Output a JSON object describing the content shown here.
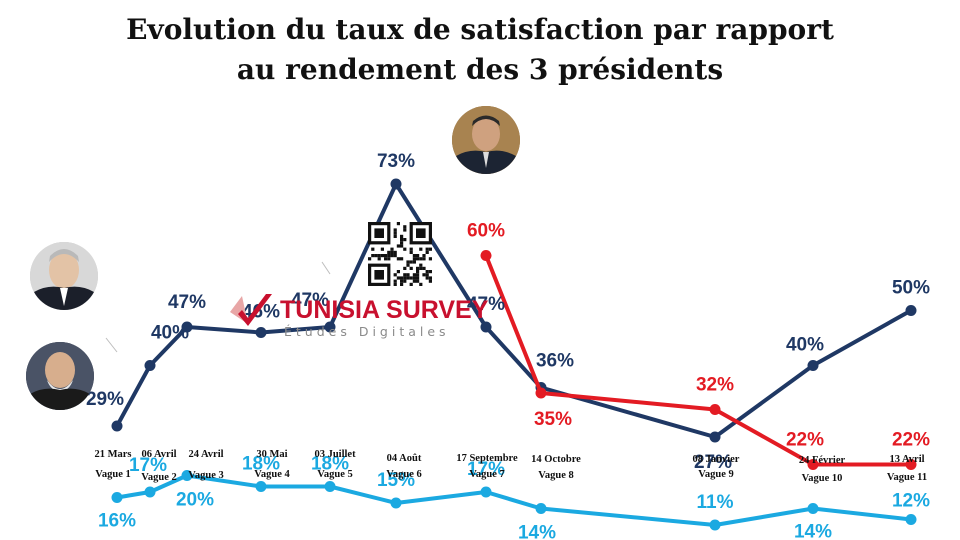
{
  "chart_data": {
    "type": "line",
    "title": "Evolution du taux de satisfaction par rapport",
    "subtitle": "au rendement des 3 présidents",
    "categories": [
      {
        "date": "21 Mars",
        "wave": "Vague 1"
      },
      {
        "date": "06 Avril",
        "wave": "Vague 2"
      },
      {
        "date": "24 Avril",
        "wave": "Vague 3"
      },
      {
        "date": "30 Mai",
        "wave": "Vague 4"
      },
      {
        "date": "03 Juillet",
        "wave": "Vague 5"
      },
      {
        "date": "04 Août",
        "wave": "Vague 6"
      },
      {
        "date": "17 Septembre",
        "wave": "Vague 7"
      },
      {
        "date": "14 Octobre",
        "wave": "Vague 8"
      },
      {
        "date": "08 Janvier",
        "wave": "Vague 9"
      },
      {
        "date": "24 Février",
        "wave": "Vague 10"
      },
      {
        "date": "13 Avril",
        "wave": "Vague 11"
      }
    ],
    "series": [
      {
        "color": "#1f3864",
        "portrait": "president-portrait",
        "values": [
          29,
          40,
          47,
          46,
          47,
          73,
          47,
          36,
          27,
          40,
          50
        ],
        "labels": [
          "29%",
          "40%",
          "47%",
          "46%",
          "47%",
          "73%",
          "47%",
          "36%",
          "27%",
          "40%",
          "50%"
        ]
      },
      {
        "color": "#e31b23",
        "portrait": "head-of-government-portrait",
        "values": [
          null,
          null,
          null,
          null,
          null,
          null,
          60,
          35,
          32,
          22,
          22
        ],
        "labels": [
          null,
          null,
          null,
          null,
          null,
          null,
          "60%",
          "35%",
          "32%",
          "22%",
          "22%"
        ]
      },
      {
        "color": "#1ba9e1",
        "portrait": "parliament-speaker-portrait",
        "values": [
          16,
          17,
          20,
          18,
          18,
          15,
          17,
          14,
          11,
          14,
          12
        ],
        "labels": [
          "16%",
          "17%",
          "20%",
          "18%",
          "18%",
          "15%",
          "17%",
          "14%",
          "11%",
          "14%",
          "12%"
        ]
      }
    ],
    "grid": false,
    "legend": "none"
  },
  "branding": {
    "logo_name": "TUNISIA SURVEY",
    "logo_tagline": "Études Digitales",
    "qr_icon": "qr-code-icon"
  }
}
